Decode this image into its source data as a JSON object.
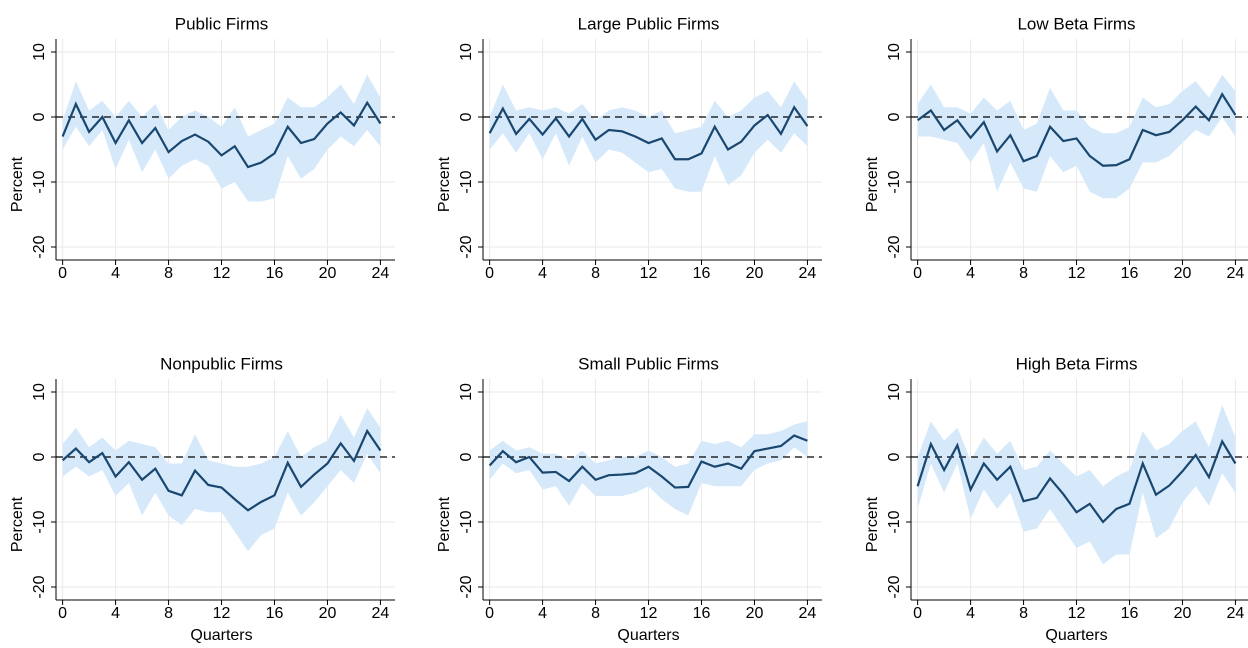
{
  "chart_data": [
    {
      "type": "line",
      "title": "Public Firms",
      "ylabel": "Percent",
      "x": [
        0,
        1,
        2,
        3,
        4,
        5,
        6,
        7,
        8,
        9,
        10,
        11,
        12,
        13,
        14,
        15,
        16,
        17,
        18,
        19,
        20,
        21,
        22,
        23,
        24
      ],
      "values": [
        -3,
        2,
        -2.3,
        0,
        -4,
        -0.5,
        -4,
        -1.7,
        -5.4,
        -3.7,
        -2.7,
        -3.8,
        -5.9,
        -4.5,
        -7.7,
        -7,
        -5.6,
        -1.5,
        -4,
        -3.4,
        -1,
        0.7,
        -1.3,
        2.2,
        -1
      ],
      "upper": [
        -0.5,
        5.5,
        1,
        2.5,
        0,
        2.5,
        0,
        2,
        -2,
        0,
        1,
        0,
        -1.5,
        1.5,
        -3,
        -2,
        -1,
        3,
        1.5,
        1.5,
        3,
        5,
        2,
        6.5,
        3
      ],
      "lower": [
        -5,
        -1.5,
        -4.5,
        -2,
        -8,
        -3.5,
        -8.5,
        -5,
        -9.5,
        -7.5,
        -6.5,
        -7.5,
        -11,
        -10,
        -13,
        -13,
        -12.5,
        -6,
        -9.5,
        -8,
        -5,
        -3,
        -4.5,
        -2,
        -4.5
      ],
      "color": "#1a476f",
      "band_color": "#d6e9fb",
      "hline": 0,
      "grid": true,
      "xlim": [
        -0.5,
        25.1
      ],
      "ylim": [
        -22,
        12
      ],
      "xticks": [
        0,
        4,
        8,
        12,
        16,
        20,
        24
      ],
      "yticks": [
        -20,
        -10,
        0,
        10
      ]
    },
    {
      "type": "line",
      "title": "Large Public Firms",
      "ylabel": "Percent",
      "x": [
        0,
        1,
        2,
        3,
        4,
        5,
        6,
        7,
        8,
        9,
        10,
        11,
        12,
        13,
        14,
        15,
        16,
        17,
        18,
        19,
        20,
        21,
        22,
        23,
        24
      ],
      "values": [
        -2.5,
        1.3,
        -2.6,
        -0.3,
        -2.7,
        -0.2,
        -3,
        -0.3,
        -3.5,
        -2,
        -2.2,
        -3,
        -4,
        -3.3,
        -6.5,
        -6.5,
        -5.6,
        -1.5,
        -5,
        -3.8,
        -1.3,
        0.3,
        -2.6,
        1.5,
        -1.4
      ],
      "upper": [
        0,
        5,
        1,
        1.5,
        1,
        1.5,
        0.5,
        2,
        -0.5,
        1,
        1.5,
        1,
        0,
        1,
        -2.5,
        -2,
        -1.5,
        2.5,
        0,
        1,
        3,
        4,
        1.5,
        5.5,
        2.5
      ],
      "lower": [
        -5,
        -2.5,
        -5.5,
        -2.5,
        -6.5,
        -2.5,
        -7.5,
        -3,
        -7,
        -5,
        -5.5,
        -7,
        -8.5,
        -8,
        -11,
        -11.5,
        -11.5,
        -6,
        -10.5,
        -9,
        -5.5,
        -3.5,
        -5.5,
        -2.5,
        -4.5
      ],
      "color": "#1a476f",
      "band_color": "#d6e9fb",
      "hline": 0,
      "grid": true,
      "xlim": [
        -0.5,
        25.1
      ],
      "ylim": [
        -22,
        12
      ],
      "xticks": [
        0,
        4,
        8,
        12,
        16,
        20,
        24
      ],
      "yticks": [
        -20,
        -10,
        0,
        10
      ]
    },
    {
      "type": "line",
      "title": "Low Beta Firms",
      "ylabel": "Percent",
      "x": [
        0,
        1,
        2,
        3,
        4,
        5,
        6,
        7,
        8,
        9,
        10,
        11,
        12,
        13,
        14,
        15,
        16,
        17,
        18,
        19,
        20,
        21,
        22,
        23,
        24
      ],
      "values": [
        -0.5,
        1,
        -2,
        -0.5,
        -3.2,
        -0.8,
        -5.3,
        -2.8,
        -6.8,
        -6,
        -1.5,
        -3.7,
        -3.3,
        -6,
        -7.5,
        -7.4,
        -6.5,
        -2,
        -2.8,
        -2.3,
        -0.5,
        1.6,
        -0.5,
        3.5,
        0.3
      ],
      "upper": [
        2,
        5,
        1.5,
        1.5,
        0.5,
        3,
        1,
        2.5,
        -2,
        -1,
        4.5,
        1,
        1,
        -1.5,
        -2.5,
        -2.5,
        -1.5,
        3,
        1.5,
        2,
        4,
        5.5,
        3,
        6.5,
        4
      ],
      "lower": [
        -3,
        -3,
        -3.5,
        -4,
        -7,
        -4,
        -11.5,
        -7,
        -11,
        -11.5,
        -6,
        -8.5,
        -7.5,
        -11.5,
        -12.5,
        -12.5,
        -11,
        -7,
        -7,
        -6,
        -4,
        -2,
        -3,
        0,
        -3
      ],
      "color": "#1a476f",
      "band_color": "#d6e9fb",
      "hline": 0,
      "grid": true,
      "xlim": [
        -0.5,
        25.1
      ],
      "ylim": [
        -22,
        12
      ],
      "xticks": [
        0,
        4,
        8,
        12,
        16,
        20,
        24
      ],
      "yticks": [
        -20,
        -10,
        0,
        10
      ]
    },
    {
      "type": "line",
      "title": "Nonpublic Firms",
      "ylabel": "Percent",
      "xlabel": "Quarters",
      "x": [
        0,
        1,
        2,
        3,
        4,
        5,
        6,
        7,
        8,
        9,
        10,
        11,
        12,
        13,
        14,
        15,
        16,
        17,
        18,
        19,
        20,
        21,
        22,
        23,
        24
      ],
      "values": [
        -0.5,
        1.3,
        -0.8,
        0.6,
        -3,
        -0.8,
        -3.5,
        -1.8,
        -5.2,
        -5.9,
        -2.1,
        -4.3,
        -4.7,
        -6.5,
        -8.2,
        -6.9,
        -5.9,
        -0.9,
        -4.6,
        -2.7,
        -1,
        2.1,
        -0.6,
        4,
        1
      ],
      "upper": [
        2,
        4.5,
        1.5,
        3,
        1,
        2.5,
        2,
        1.5,
        -1,
        -1,
        3.5,
        -0.5,
        -1,
        -1.5,
        -1.5,
        -1,
        0,
        4,
        0,
        1.5,
        2.5,
        6.5,
        3,
        7.5,
        4.5
      ],
      "lower": [
        -3,
        -1.5,
        -3,
        -2,
        -6,
        -4,
        -9,
        -5.5,
        -9,
        -10.5,
        -8,
        -8.5,
        -8.5,
        -11.5,
        -14.5,
        -12,
        -11,
        -5.5,
        -9,
        -7,
        -4.5,
        -2,
        -4,
        0.5,
        -2.5
      ],
      "color": "#1a476f",
      "band_color": "#d6e9fb",
      "hline": 0,
      "grid": true,
      "xlim": [
        -0.5,
        25.1
      ],
      "ylim": [
        -22,
        12
      ],
      "xticks": [
        0,
        4,
        8,
        12,
        16,
        20,
        24
      ],
      "yticks": [
        -20,
        -10,
        0,
        10
      ]
    },
    {
      "type": "line",
      "title": "Small Public Firms",
      "ylabel": "Percent",
      "xlabel": "Quarters",
      "x": [
        0,
        1,
        2,
        3,
        4,
        5,
        6,
        7,
        8,
        9,
        10,
        11,
        12,
        13,
        14,
        15,
        16,
        17,
        18,
        19,
        20,
        21,
        22,
        23,
        24
      ],
      "values": [
        -1.3,
        0.9,
        -0.8,
        0,
        -2.4,
        -2.3,
        -3.7,
        -1.5,
        -3.5,
        -2.8,
        -2.7,
        -2.5,
        -1.5,
        -3,
        -4.7,
        -4.6,
        -0.7,
        -1.5,
        -1,
        -1.8,
        0.9,
        1.3,
        1.7,
        3.3,
        2.5
      ],
      "upper": [
        1,
        2.5,
        1,
        1.5,
        0.5,
        0.5,
        -0.5,
        1,
        -1,
        -0.5,
        0,
        0,
        1,
        0,
        -1.5,
        -1,
        2.5,
        2,
        2.5,
        1.5,
        3.5,
        3.5,
        4,
        5,
        5.5
      ],
      "lower": [
        -3.5,
        -1,
        -2.5,
        -2,
        -5,
        -4.5,
        -7.5,
        -4,
        -6,
        -6,
        -6,
        -5.5,
        -4.5,
        -6.5,
        -8,
        -9,
        -4,
        -4.5,
        -4.5,
        -4.5,
        -2,
        -1,
        -0.5,
        1.5,
        0
      ],
      "color": "#1a476f",
      "band_color": "#d6e9fb",
      "hline": 0,
      "grid": true,
      "xlim": [
        -0.5,
        25.1
      ],
      "ylim": [
        -22,
        12
      ],
      "xticks": [
        0,
        4,
        8,
        12,
        16,
        20,
        24
      ],
      "yticks": [
        -20,
        -10,
        0,
        10
      ]
    },
    {
      "type": "line",
      "title": "High Beta Firms",
      "ylabel": "Percent",
      "xlabel": "Quarters",
      "x": [
        0,
        1,
        2,
        3,
        4,
        5,
        6,
        7,
        8,
        9,
        10,
        11,
        12,
        13,
        14,
        15,
        16,
        17,
        18,
        19,
        20,
        21,
        22,
        23,
        24
      ],
      "values": [
        -4.5,
        2,
        -2,
        1.8,
        -5,
        -1,
        -3.5,
        -1.5,
        -6.8,
        -6.3,
        -3.3,
        -5.7,
        -8.5,
        -7.2,
        -10,
        -8,
        -7.2,
        -1,
        -5.8,
        -4.4,
        -2.2,
        0.3,
        -3.1,
        2.4,
        -1
      ],
      "upper": [
        0,
        5.5,
        2.5,
        4.5,
        -0.5,
        3,
        0.5,
        2.5,
        -2,
        -1.5,
        1,
        -1,
        -3,
        -2,
        -4.5,
        -3,
        -2,
        4,
        1,
        2,
        4,
        5.5,
        1.5,
        8,
        3
      ],
      "lower": [
        -8,
        -1,
        -5.5,
        -1,
        -9.5,
        -5,
        -8,
        -5.5,
        -11.5,
        -11,
        -8,
        -11,
        -14,
        -13,
        -16.5,
        -15,
        -15,
        -5.5,
        -12.5,
        -11,
        -7,
        -4.5,
        -7.5,
        -2.5,
        -5.5
      ],
      "color": "#1a476f",
      "band_color": "#d6e9fb",
      "hline": 0,
      "grid": true,
      "xlim": [
        -0.5,
        25.1
      ],
      "ylim": [
        -22,
        12
      ],
      "xticks": [
        0,
        4,
        8,
        12,
        16,
        20,
        24
      ],
      "yticks": [
        -20,
        -10,
        0,
        10
      ]
    }
  ]
}
